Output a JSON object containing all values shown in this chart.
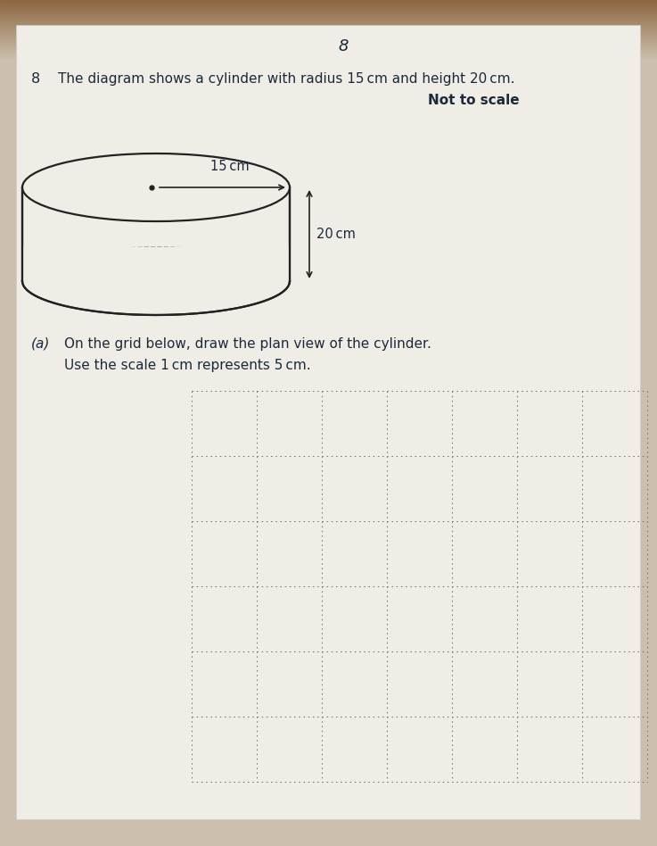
{
  "bg_top_color": "#a08060",
  "bg_bottom_color": "#d8cfc4",
  "paper_color": "#f0ece6",
  "page_number_top": "8",
  "question_number": "8",
  "question_text": "The diagram shows a cylinder with radius 15 cm and height 20 cm.",
  "not_to_scale": "Not to scale",
  "radius_label": "15 cm",
  "height_label": "20 cm",
  "part_a_label": "(a)",
  "part_a_line1": "On the grid below, draw the plan view of the cylinder.",
  "part_a_line2": "Use the scale 1 cm represents 5 cm.",
  "grid_cols": 7,
  "grid_rows": 6,
  "grid_color": "#777777",
  "text_color": "#1a2a3a",
  "cylinder_line_color": "#222222",
  "arrow_color": "#222222"
}
